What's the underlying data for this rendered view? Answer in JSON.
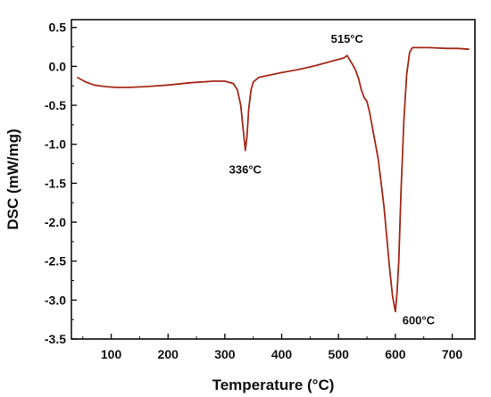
{
  "chart_data": {
    "type": "line",
    "title": "",
    "xlabel": "Temperature (°C)",
    "ylabel": "DSC (mW/mg)",
    "xlim": [
      30,
      740
    ],
    "ylim": [
      -3.5,
      0.6
    ],
    "xticks": [
      100,
      200,
      300,
      400,
      500,
      600,
      700
    ],
    "yticks": [
      0.5,
      0.0,
      -0.5,
      -1.0,
      -1.5,
      -2.0,
      -2.5,
      -3.0,
      -3.5
    ],
    "ytick_labels": [
      "0.5",
      "0.0",
      "-0.5",
      "-1.0",
      "-1.5",
      "-2.0",
      "-2.5",
      "-3.0",
      "-3.5"
    ],
    "grid": false,
    "legend": "none",
    "series": [
      {
        "color": "#a52a1a",
        "x": [
          40,
          55,
          70,
          90,
          110,
          130,
          160,
          200,
          240,
          280,
          300,
          315,
          322,
          328,
          332,
          336,
          339,
          342,
          346,
          350,
          360,
          380,
          400,
          430,
          460,
          480,
          495,
          505,
          510,
          515,
          520,
          525,
          530,
          535,
          540,
          545,
          550,
          555,
          560,
          565,
          570,
          575,
          580,
          585,
          590,
          595,
          600,
          603,
          606,
          610,
          615,
          620,
          625,
          630,
          640,
          660,
          690,
          710,
          730
        ],
        "y": [
          -0.14,
          -0.2,
          -0.24,
          -0.26,
          -0.27,
          -0.27,
          -0.26,
          -0.24,
          -0.21,
          -0.19,
          -0.19,
          -0.22,
          -0.3,
          -0.5,
          -0.8,
          -1.08,
          -0.9,
          -0.55,
          -0.3,
          -0.2,
          -0.14,
          -0.11,
          -0.08,
          -0.04,
          0.01,
          0.05,
          0.08,
          0.1,
          0.11,
          0.14,
          0.08,
          0.02,
          -0.05,
          -0.15,
          -0.3,
          -0.4,
          -0.45,
          -0.6,
          -0.8,
          -1.0,
          -1.2,
          -1.5,
          -1.8,
          -2.2,
          -2.6,
          -2.95,
          -3.15,
          -2.9,
          -2.5,
          -1.6,
          -0.7,
          -0.1,
          0.18,
          0.24,
          0.24,
          0.24,
          0.23,
          0.23,
          0.22
        ]
      }
    ],
    "annotations": [
      {
        "text": "336°C",
        "x": 336,
        "y": -1.08
      },
      {
        "text": "515°C",
        "x": 515,
        "y": 0.14
      },
      {
        "text": "600°C",
        "x": 600,
        "y": -3.15
      }
    ]
  }
}
